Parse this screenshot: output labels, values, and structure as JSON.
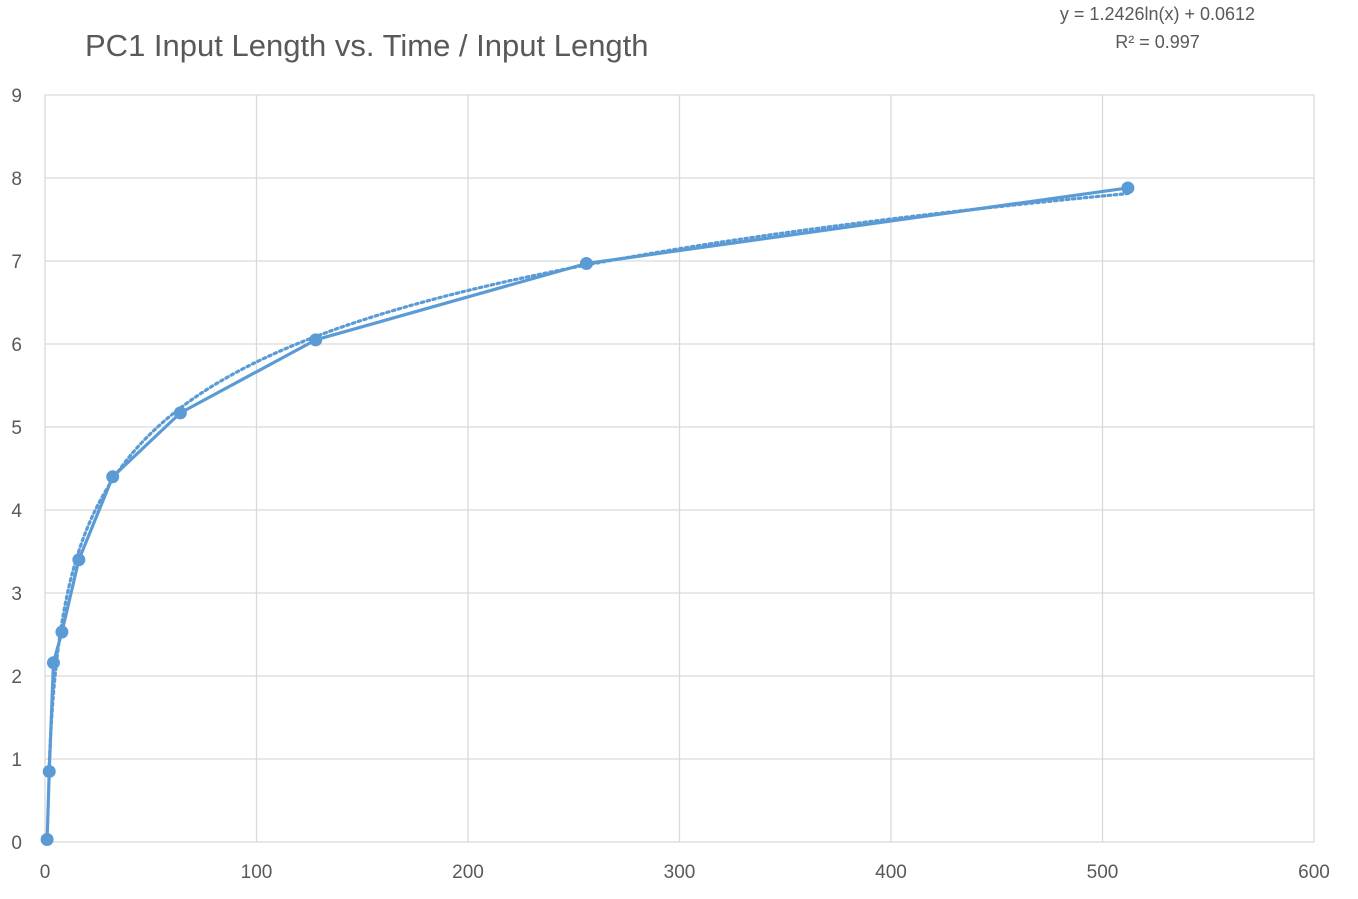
{
  "chart_data": {
    "type": "scatter",
    "title": "PC1 Input Length vs. Time / Input Length",
    "xlabel": "",
    "ylabel": "",
    "xlim": [
      0,
      600
    ],
    "ylim": [
      0,
      9
    ],
    "x_ticks": [
      "0",
      "100",
      "200",
      "300",
      "400",
      "500",
      "600"
    ],
    "y_ticks": [
      "0",
      "1",
      "2",
      "3",
      "4",
      "5",
      "6",
      "7",
      "8",
      "9"
    ],
    "grid": true,
    "legend": "none",
    "series": [
      {
        "x": [
          1,
          2,
          4,
          8,
          16,
          32,
          64,
          128,
          256,
          512
        ],
        "y": [
          0.03,
          0.85,
          2.16,
          2.53,
          3.4,
          4.4,
          5.17,
          6.05,
          6.97,
          7.88
        ],
        "style": "line-with-markers",
        "color": "#5b9bd5"
      }
    ],
    "trendline": {
      "kind": "logarithmic",
      "a": 1.2426,
      "b": 0.0612,
      "style": "dotted",
      "color": "#5b9bd5",
      "equation_label": "y = 1.2426ln(x) + 0.0612",
      "r2_label": "R² = 0.997"
    }
  }
}
